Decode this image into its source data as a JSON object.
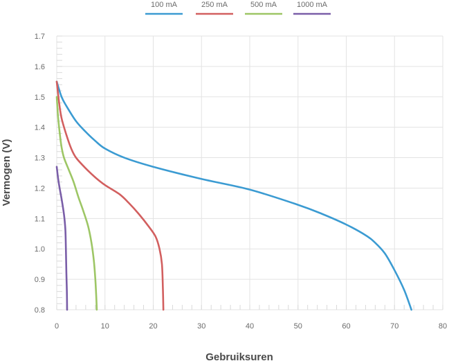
{
  "chart_data": {
    "type": "line",
    "title": "",
    "xlabel": "Gebruiksuren",
    "ylabel": "Vermogen (V)",
    "xlim": [
      0,
      80
    ],
    "ylim": [
      0.8,
      1.7
    ],
    "x_ticks": [
      0,
      10,
      20,
      30,
      40,
      50,
      60,
      70,
      80
    ],
    "y_ticks": [
      0.8,
      0.9,
      1.0,
      1.1,
      1.2,
      1.3,
      1.4,
      1.5,
      1.6,
      1.7
    ],
    "grid": true,
    "legend_position": "top-center",
    "series": [
      {
        "name": "100 mA",
        "color": "#3b9bd2",
        "points": [
          [
            0,
            1.55
          ],
          [
            1,
            1.5
          ],
          [
            2,
            1.47
          ],
          [
            4,
            1.42
          ],
          [
            6,
            1.385
          ],
          [
            8,
            1.355
          ],
          [
            10,
            1.33
          ],
          [
            14,
            1.3
          ],
          [
            20,
            1.27
          ],
          [
            30,
            1.23
          ],
          [
            40,
            1.195
          ],
          [
            50,
            1.145
          ],
          [
            55,
            1.115
          ],
          [
            60,
            1.08
          ],
          [
            64,
            1.045
          ],
          [
            66,
            1.02
          ],
          [
            68,
            0.985
          ],
          [
            70,
            0.93
          ],
          [
            72,
            0.865
          ],
          [
            73.5,
            0.8
          ]
        ]
      },
      {
        "name": "250 mA",
        "color": "#d25f5f",
        "points": [
          [
            0,
            1.55
          ],
          [
            0.5,
            1.48
          ],
          [
            1,
            1.43
          ],
          [
            2,
            1.375
          ],
          [
            3,
            1.33
          ],
          [
            4,
            1.3
          ],
          [
            6,
            1.265
          ],
          [
            8,
            1.235
          ],
          [
            10,
            1.21
          ],
          [
            13,
            1.18
          ],
          [
            15,
            1.15
          ],
          [
            17,
            1.115
          ],
          [
            19,
            1.075
          ],
          [
            20.5,
            1.04
          ],
          [
            21.3,
            1.0
          ],
          [
            21.8,
            0.95
          ],
          [
            22.0,
            0.87
          ],
          [
            22.1,
            0.8
          ]
        ]
      },
      {
        "name": "500 mA",
        "color": "#9dc665",
        "points": [
          [
            0,
            1.5
          ],
          [
            0.3,
            1.43
          ],
          [
            0.7,
            1.37
          ],
          [
            1,
            1.335
          ],
          [
            1.5,
            1.3
          ],
          [
            2.5,
            1.26
          ],
          [
            3.5,
            1.22
          ],
          [
            4.5,
            1.17
          ],
          [
            5.5,
            1.125
          ],
          [
            6.5,
            1.075
          ],
          [
            7.2,
            1.02
          ],
          [
            7.7,
            0.96
          ],
          [
            8.0,
            0.9
          ],
          [
            8.2,
            0.84
          ],
          [
            8.3,
            0.8
          ]
        ]
      },
      {
        "name": "1000 mA",
        "color": "#7a5ea8",
        "points": [
          [
            0,
            1.27
          ],
          [
            0.3,
            1.23
          ],
          [
            0.6,
            1.2
          ],
          [
            1,
            1.165
          ],
          [
            1.4,
            1.125
          ],
          [
            1.6,
            1.1
          ],
          [
            1.8,
            1.06
          ],
          [
            1.9,
            1.0
          ],
          [
            2.0,
            0.92
          ],
          [
            2.1,
            0.86
          ],
          [
            2.15,
            0.8
          ]
        ]
      }
    ]
  }
}
